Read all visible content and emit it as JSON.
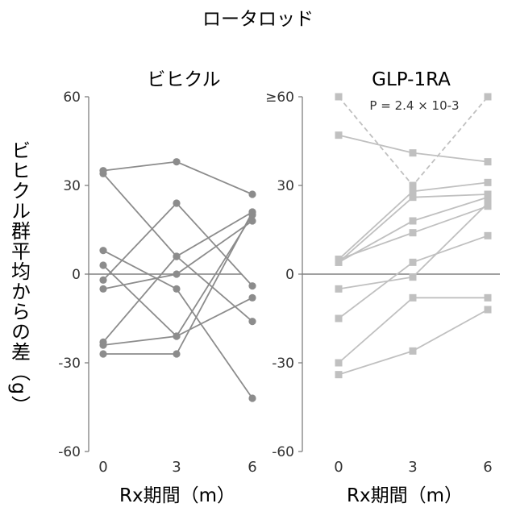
{
  "figure_title": "ロータロッド",
  "ylabel": "ビヒクル群平均からの差（g）",
  "chart_data": [
    {
      "type": "line",
      "title": "ビヒクル",
      "xlabel": "Rx期間（m）",
      "x": [
        0,
        3,
        6
      ],
      "xticks": [
        "0",
        "3",
        "6"
      ],
      "ylim": [
        -60,
        60
      ],
      "yticks": [
        "60",
        "30",
        "0",
        "-30",
        "-60"
      ],
      "reference_line": 0,
      "marker": "circle",
      "color": "#8c8c8c",
      "series": [
        {
          "values": [
            35,
            38,
            27
          ]
        },
        {
          "values": [
            34,
            6,
            -16
          ]
        },
        {
          "values": [
            8,
            -5,
            -42
          ]
        },
        {
          "values": [
            3,
            -21,
            -8
          ]
        },
        {
          "values": [
            -2,
            24,
            -4
          ]
        },
        {
          "values": [
            -5,
            0,
            18
          ]
        },
        {
          "values": [
            -23,
            6,
            21
          ]
        },
        {
          "values": [
            -24,
            -21,
            20
          ]
        },
        {
          "values": [
            -27,
            -27,
            21
          ]
        }
      ]
    },
    {
      "type": "line",
      "title": "GLP-1RA",
      "annotation": "P = 2.4 × 10-3",
      "xlabel": "Rx期間（m）",
      "x": [
        0,
        3,
        6
      ],
      "xticks": [
        "0",
        "3",
        "6"
      ],
      "ylim": [
        -60,
        60
      ],
      "yticks": [
        "≥60",
        "30",
        "0",
        "-30",
        "-60"
      ],
      "reference_line": 0,
      "marker": "square",
      "color": "#c0c0c0",
      "series": [
        {
          "values": [
            60,
            30,
            60
          ],
          "style": "dashed"
        },
        {
          "values": [
            47,
            41,
            38
          ]
        },
        {
          "values": [
            5,
            28,
            31
          ]
        },
        {
          "values": [
            4,
            26,
            27
          ]
        },
        {
          "values": [
            4,
            18,
            26
          ]
        },
        {
          "values": [
            5,
            14,
            23
          ]
        },
        {
          "values": [
            -5,
            -1,
            24
          ]
        },
        {
          "values": [
            -15,
            4,
            13
          ]
        },
        {
          "values": [
            -30,
            -8,
            -8
          ]
        },
        {
          "values": [
            -34,
            -26,
            -12
          ]
        }
      ]
    }
  ]
}
